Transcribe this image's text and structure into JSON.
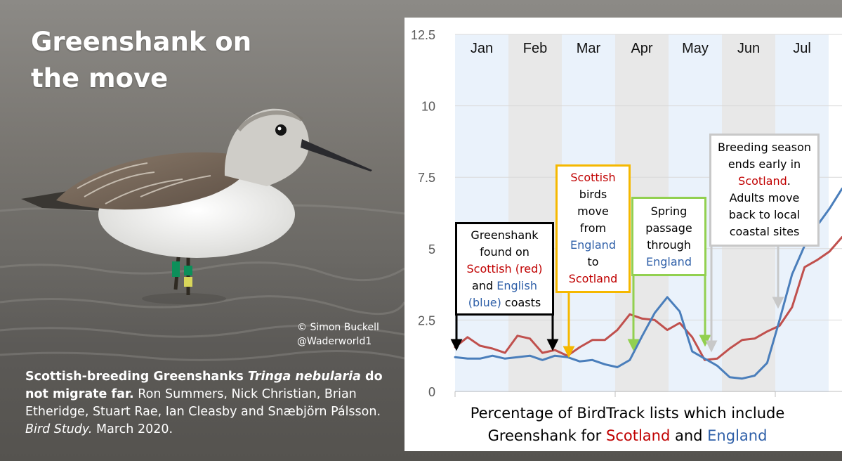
{
  "title_line1": "Greenshank on",
  "title_line2": "the move",
  "photo_credit": {
    "line1": "© Simon Buckell",
    "line2": "@Waderworld1"
  },
  "citation": {
    "bold_part1": "Scottish-breeding Greenshanks ",
    "bold_italic": "Tringa nebularia",
    "bold_part2": " do not migrate far.",
    "authors": " Ron Summers, Nick Christian, Brian Etheridge, Stuart Rae, Ian Cleasby and Snæbjörn Pálsson. ",
    "journal": "Bird Study.",
    "date": " March 2020."
  },
  "caption": {
    "line1": "Percentage of BirdTrack lists which include",
    "line2_prefix": "Greenshank for ",
    "scotland": "Scotland",
    "and": " and ",
    "england": "England"
  },
  "annotations": {
    "a1": {
      "line1": "Greenshank",
      "line2": "found on",
      "red": "Scottish (red)",
      "and": "and ",
      "blue": "English",
      "blue2": "(blue)",
      "tail": " coasts"
    },
    "a2": {
      "line1": "Scottish",
      "line2": "birds",
      "line3": "move",
      "line4": "from",
      "blue": "England",
      "line6": "to",
      "red": "Scotland"
    },
    "a3": {
      "line1": "Spring",
      "line2": "passage",
      "line3": "through",
      "blue": "England"
    },
    "a4": {
      "line1": "Breeding season",
      "line2": "ends early in",
      "red": "Scotland",
      "dot": ".",
      "line4": "Adults move",
      "line5": "back to local",
      "line6": "coastal sites"
    }
  },
  "colors": {
    "scotland": "#c0504d",
    "england": "#4a7ebb",
    "red_text": "#c00000",
    "blue_text": "#2e5fa8",
    "shade_light": "#eaf2fb",
    "shade_grey": "#e8e8e8"
  },
  "chart_data": {
    "type": "line",
    "months": [
      "Jan",
      "Feb",
      "Mar",
      "Apr",
      "May",
      "Jun",
      "Jul"
    ],
    "ylim": [
      0,
      12.5
    ],
    "yticks": [
      "0",
      "2.5",
      "5",
      "7.5",
      "10",
      "12.5"
    ],
    "x_unit": "week",
    "xlim": [
      0,
      31
    ],
    "series": [
      {
        "name": "Scotland",
        "color": "#c0504d",
        "x": [
          0,
          1,
          2,
          3,
          4,
          5,
          6,
          7,
          8,
          9,
          10,
          11,
          12,
          13,
          14,
          15,
          16,
          17,
          18,
          19,
          20,
          21,
          22,
          23,
          24,
          25,
          26,
          27,
          28,
          29,
          30,
          31
        ],
        "values": [
          1.55,
          1.9,
          1.6,
          1.5,
          1.35,
          1.95,
          1.85,
          1.35,
          1.45,
          1.25,
          1.55,
          1.8,
          1.8,
          2.15,
          2.7,
          2.55,
          2.5,
          2.15,
          2.4,
          1.9,
          1.1,
          1.15,
          1.5,
          1.8,
          1.85,
          2.1,
          2.3,
          2.95,
          4.35,
          4.6,
          4.9,
          5.4
        ]
      },
      {
        "name": "England",
        "color": "#4a7ebb",
        "x": [
          0,
          1,
          2,
          3,
          4,
          5,
          6,
          7,
          8,
          9,
          10,
          11,
          12,
          13,
          14,
          15,
          16,
          17,
          18,
          19,
          20,
          21,
          22,
          23,
          24,
          25,
          26,
          27,
          28,
          29,
          30,
          31
        ],
        "values": [
          1.2,
          1.15,
          1.15,
          1.25,
          1.15,
          1.2,
          1.25,
          1.1,
          1.25,
          1.2,
          1.05,
          1.1,
          0.95,
          0.85,
          1.1,
          1.95,
          2.75,
          3.3,
          2.8,
          1.4,
          1.15,
          0.9,
          0.5,
          0.45,
          0.55,
          1.0,
          2.5,
          4.1,
          5.1,
          5.8,
          6.4,
          7.1
        ]
      }
    ]
  }
}
